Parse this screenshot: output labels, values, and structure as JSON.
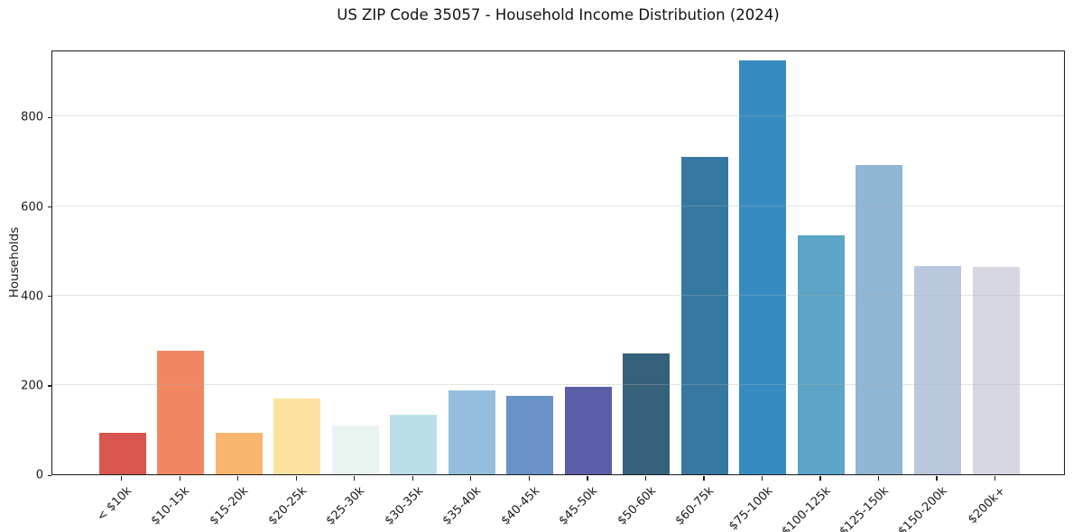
{
  "title": "US ZIP Code 35057 - Household Income Distribution (2024)",
  "chart_data": {
    "type": "bar",
    "title": "US ZIP Code 35057 - Household Income Distribution (2024)",
    "xlabel": "",
    "ylabel": "Households",
    "categories": [
      "< $10k",
      "$10-15k",
      "$15-20k",
      "$20-25k",
      "$25-30k",
      "$30-35k",
      "$35-40k",
      "$40-45k",
      "$45-50k",
      "$50-60k",
      "$60-75k",
      "$75-100k",
      "$100-125k",
      "$125-150k",
      "$150-200k",
      "$200k+"
    ],
    "values": [
      93,
      276,
      92,
      170,
      108,
      133,
      187,
      176,
      195,
      270,
      710,
      925,
      534,
      691,
      466,
      464
    ],
    "bar_colors": [
      "#d9564f",
      "#f18762",
      "#f9b46e",
      "#fce29e",
      "#e9f4f0",
      "#bbdde9",
      "#93bedd",
      "#6a92c8",
      "#5a5ea8",
      "#35617b",
      "#36789f",
      "#378bc1",
      "#5ba5c8",
      "#8fb6d3",
      "#bac8df",
      "#d6d7e3"
    ],
    "ylim": [
      0,
      950
    ],
    "yticks": [
      0,
      200,
      400,
      600,
      800
    ],
    "grid": "horizontal-above-bars",
    "legend": "none",
    "background": "#ffffff",
    "x_tick_rotation_deg": 45
  }
}
